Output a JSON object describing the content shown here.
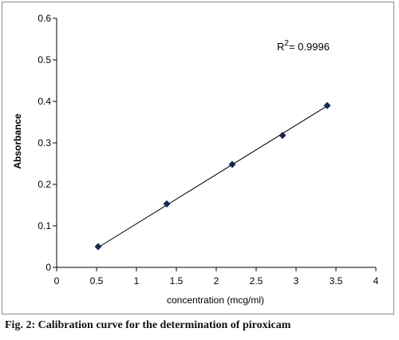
{
  "caption": "Fig. 2: Calibration curve for the determination of piroxicam",
  "chart_data": {
    "type": "scatter",
    "title": "",
    "xlabel": "concentration (mcg/ml)",
    "ylabel": "Absorbance",
    "xlim": [
      0,
      4
    ],
    "ylim": [
      0,
      0.6
    ],
    "x_ticks": [
      "0",
      "0.5",
      "1",
      "1.5",
      "2",
      "2.5",
      "3",
      "3.5",
      "4"
    ],
    "y_ticks": [
      "0",
      "0.1",
      "0.2",
      "0.3",
      "0.4",
      "0.5",
      "0.6"
    ],
    "grid": false,
    "points": [
      {
        "x": 0.52,
        "y": 0.05
      },
      {
        "x": 1.38,
        "y": 0.153
      },
      {
        "x": 2.2,
        "y": 0.248
      },
      {
        "x": 2.83,
        "y": 0.318
      },
      {
        "x": 3.39,
        "y": 0.39
      }
    ],
    "trendline": {
      "x_start": 0.52,
      "y_start": 0.048,
      "x_end": 3.39,
      "y_end": 0.389
    },
    "r2_label": "R",
    "r2_sup": "2",
    "r2_value": "= 0.9996",
    "marker_color": "#17265a",
    "line_color": "#000000"
  }
}
